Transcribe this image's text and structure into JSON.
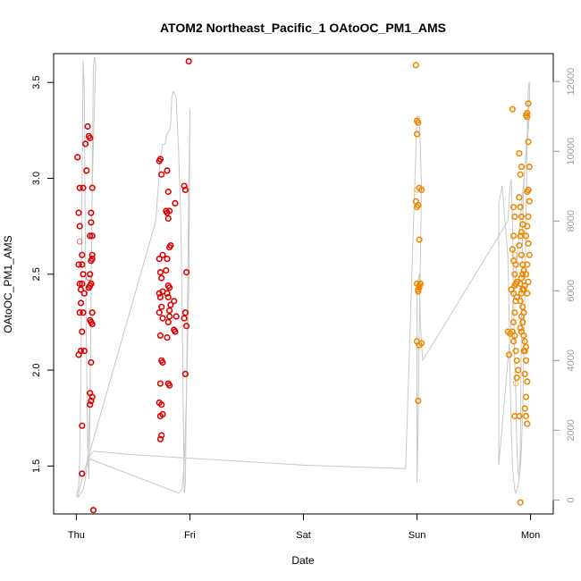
{
  "chart_data": {
    "type": "scatter",
    "title": "ATOM2 Northeast_Pacific_1 OAtoOC_PM1_AMS",
    "xlabel": "Date",
    "ylabel": "OAtoOC_PM1_AMS",
    "x_ticks": [
      "Thu",
      "Fri",
      "Sat",
      "Sun",
      "Mon"
    ],
    "x_range_days": [
      -0.2,
      4.2
    ],
    "y_left": {
      "range": [
        1.25,
        3.65
      ],
      "ticks": [
        "1.5",
        "2.0",
        "2.5",
        "3.0",
        "3.5"
      ]
    },
    "y_right": {
      "range": [
        -400,
        12800
      ],
      "ticks": [
        "0",
        "2000",
        "4000",
        "6000",
        "8000",
        "10000",
        "12000"
      ],
      "color": "#9a9a9a"
    },
    "grid": false,
    "legend": "none",
    "series": [
      {
        "color": "#dd0000",
        "x": [
          0.01,
          0.02,
          0.03,
          0.02,
          0.04,
          0.03,
          0.05,
          0.06,
          0.05,
          0.07,
          0.03,
          0.04,
          0.06,
          0.05,
          0.04,
          0.03,
          0.02,
          0.05,
          0.07,
          0.06,
          0.04,
          0.03,
          0.05,
          0.08,
          0.1,
          0.12,
          0.11,
          0.13,
          0.12,
          0.13,
          0.14,
          0.12,
          0.11,
          0.13,
          0.14,
          0.13,
          0.12,
          0.14,
          0.13,
          0.12,
          0.11,
          0.14,
          0.13,
          0.12,
          0.14,
          0.13,
          0.12,
          0.11,
          0.13,
          0.14,
          0.15,
          0.14,
          0.05,
          0.09,
          0.14,
          0.74,
          0.75,
          0.73,
          0.76,
          0.74,
          0.75,
          0.76,
          0.73,
          0.74,
          0.75,
          0.76,
          0.73,
          0.74,
          0.75,
          0.76,
          0.74,
          0.73,
          0.75,
          0.74,
          0.76,
          0.75,
          0.74,
          0.73,
          0.8,
          0.81,
          0.79,
          0.82,
          0.8,
          0.81,
          0.83,
          0.82,
          0.8,
          0.79,
          0.81,
          0.82,
          0.8,
          0.81,
          0.83,
          0.82,
          0.81,
          0.8,
          0.82,
          0.81,
          0.82,
          0.86,
          0.87,
          0.88,
          0.86,
          0.87,
          0.95,
          0.96,
          0.97,
          0.96,
          0.95,
          0.96,
          0.97,
          0.99
        ],
        "y": [
          3.11,
          2.08,
          2.75,
          2.55,
          2.1,
          2.95,
          2.45,
          2.5,
          2.6,
          2.4,
          2.3,
          2.35,
          2.3,
          2.2,
          2.42,
          2.67,
          2.82,
          1.71,
          2.1,
          2.95,
          2.42,
          2.45,
          2.55,
          3.18,
          3.27,
          3.21,
          3.22,
          2.82,
          2.7,
          2.77,
          2.58,
          2.5,
          2.48,
          2.45,
          2.6,
          2.45,
          2.44,
          2.3,
          2.25,
          2.26,
          2.43,
          2.24,
          2.04,
          1.88,
          1.86,
          1.84,
          1.82,
          2.43,
          2.57,
          2.58,
          1.27,
          2.7,
          1.46,
          3.04,
          2.95,
          3.1,
          3.02,
          2.58,
          2.6,
          2.51,
          2.48,
          2.41,
          2.4,
          2.38,
          2.33,
          2.27,
          2.3,
          2.18,
          2.05,
          2.04,
          1.93,
          1.83,
          1.82,
          1.76,
          1.77,
          1.66,
          1.64,
          3.09,
          3.04,
          2.93,
          2.83,
          2.83,
          2.82,
          2.79,
          2.65,
          2.64,
          2.58,
          2.52,
          2.44,
          2.43,
          2.4,
          2.38,
          2.34,
          2.31,
          2.25,
          2.17,
          2.28,
          1.93,
          1.92,
          2.36,
          2.87,
          2.28,
          2.21,
          2.2,
          2.96,
          2.94,
          2.51,
          2.3,
          2.27,
          1.98,
          2.23,
          3.61
        ],
        "hollow_light": [
          15,
          20,
          30,
          32
        ]
      },
      {
        "color": "#ee8800",
        "x": [
          2.99,
          3.0,
          3.01,
          3.0,
          3.02,
          3.0,
          2.99,
          3.01,
          3.0,
          3.02,
          3.04,
          3.03,
          3.02,
          3.01,
          3.0,
          3.02,
          3.01,
          3.0,
          3.04,
          3.02,
          3.01,
          3.03,
          3.8,
          3.82,
          3.81,
          3.83,
          3.84,
          3.85,
          3.86,
          3.85,
          3.84,
          3.86,
          3.85,
          3.87,
          3.86,
          3.88,
          3.87,
          3.86,
          3.85,
          3.88,
          3.87,
          3.86,
          3.85,
          3.84,
          3.86,
          3.85,
          3.87,
          3.88,
          3.89,
          3.88,
          3.87,
          3.86,
          3.9,
          3.91,
          3.9,
          3.92,
          3.91,
          3.9,
          3.91,
          3.92,
          3.93,
          3.92,
          3.91,
          3.9,
          3.92,
          3.93,
          3.94,
          3.93,
          3.92,
          3.91,
          3.93,
          3.92,
          3.91,
          3.93,
          3.94,
          3.92,
          3.93,
          3.91,
          3.92,
          3.94,
          3.95,
          3.96,
          3.95,
          3.94,
          3.96,
          3.95,
          3.97,
          3.96,
          3.95,
          3.96,
          3.97,
          3.98,
          3.97,
          3.96,
          3.97,
          3.98,
          3.99,
          3.98,
          3.97,
          3.99,
          3.98,
          3.97,
          3.96,
          3.98,
          3.99,
          3.97,
          3.96,
          3.98,
          3.95,
          3.94,
          3.97
        ],
        "y": [
          3.59,
          3.3,
          3.29,
          3.23,
          2.95,
          2.94,
          2.88,
          2.86,
          2.85,
          2.68,
          2.94,
          2.45,
          2.44,
          2.42,
          2.45,
          2.43,
          2.41,
          2.15,
          2.14,
          2.13,
          1.84,
          2.45,
          2.2,
          2.19,
          2.08,
          2.42,
          3.36,
          2.85,
          2.8,
          2.7,
          2.63,
          2.6,
          2.57,
          2.55,
          2.5,
          2.46,
          2.45,
          2.44,
          2.4,
          2.38,
          2.36,
          2.3,
          2.25,
          2.2,
          2.18,
          2.15,
          2.1,
          2.05,
          2.0,
          1.96,
          1.93,
          1.76,
          1.76,
          1.31,
          3.13,
          3.06,
          3.02,
          2.9,
          2.85,
          2.8,
          2.76,
          2.72,
          2.7,
          2.65,
          2.6,
          2.55,
          2.52,
          2.5,
          2.48,
          2.45,
          2.42,
          2.4,
          2.36,
          2.33,
          2.3,
          2.28,
          2.25,
          2.22,
          2.2,
          2.18,
          2.15,
          2.12,
          2.1,
          2.1,
          2.05,
          1.98,
          1.94,
          1.86,
          1.8,
          1.76,
          1.72,
          3.39,
          3.34,
          3.33,
          3.32,
          3.19,
          3.06,
          2.94,
          2.93,
          2.88,
          2.8,
          2.75,
          2.7,
          2.66,
          2.6,
          2.55,
          2.5,
          2.46,
          2.44,
          2.42,
          2.4
        ],
        "hollow_light": [
          5,
          31,
          50
        ]
      }
    ],
    "line_right_axis": {
      "color": "#c8c8c8",
      "x": [
        0.0,
        0.02,
        0.03,
        0.04,
        0.05,
        0.06,
        0.07,
        0.08,
        0.09,
        0.1,
        0.11,
        0.12,
        0.13,
        0.14,
        0.15,
        0.16,
        0.17,
        0.14,
        0.13,
        0.12,
        0.1,
        0.08,
        0.06,
        0.04,
        0.03,
        0.02,
        0.01,
        0.05,
        0.7,
        0.74,
        0.76,
        0.78,
        0.8,
        0.82,
        0.83,
        0.84,
        0.85,
        0.86,
        0.88,
        0.9,
        0.92,
        0.93,
        0.94,
        0.95,
        0.96,
        0.98,
        0.99,
        1.0,
        1.0,
        0.99,
        0.97,
        0.95,
        0.93,
        0.9,
        0.1,
        0.15,
        0.5,
        1.0,
        2.0,
        2.9,
        3.0,
        3.02,
        3.04,
        3.03,
        3.02,
        3.01,
        3.0,
        3.0,
        3.02,
        3.03,
        3.05,
        3.8,
        3.82,
        3.83,
        3.84,
        3.85,
        3.86,
        3.87,
        3.88,
        3.89,
        3.9,
        3.91,
        3.92,
        3.93,
        3.94,
        3.95,
        3.96,
        3.97,
        3.98,
        3.99,
        3.99,
        3.98,
        3.97,
        3.96,
        3.95,
        3.94,
        3.93,
        3.92,
        3.91,
        3.9,
        3.89,
        3.88,
        3.87,
        3.86,
        3.85,
        3.84,
        3.83,
        3.82,
        3.81,
        3.8,
        3.75,
        3.72,
        3.72,
        3.72,
        3.99,
        3.99
      ],
      "y": [
        100,
        400,
        1200,
        3500,
        9000,
        12600,
        11800,
        7000,
        4000,
        1500,
        600,
        2500,
        6000,
        9500,
        12400,
        12700,
        12500,
        9000,
        6000,
        3000,
        1200,
        600,
        300,
        200,
        150,
        100,
        80,
        600,
        8000,
        9800,
        10200,
        10200,
        10500,
        10600,
        10800,
        11500,
        11700,
        11700,
        11500,
        10000,
        8000,
        6000,
        3000,
        200,
        500,
        6000,
        9000,
        11000,
        11200,
        6000,
        3000,
        1000,
        300,
        200,
        1200,
        1400,
        1300,
        1200,
        1000,
        900,
        11000,
        11000,
        9000,
        7000,
        5000,
        2000,
        500,
        6000,
        6500,
        5000,
        4000,
        8000,
        9000,
        9200,
        8000,
        6000,
        4000,
        3000,
        1500,
        800,
        600,
        1500,
        5000,
        8000,
        9000,
        9500,
        10000,
        10500,
        11000,
        11500,
        12000,
        11800,
        10500,
        8000,
        6000,
        4000,
        2500,
        1500,
        1000,
        600,
        400,
        300,
        200,
        300,
        600,
        1000,
        2000,
        3500,
        5500,
        7000,
        9000,
        8500,
        1000,
        1000,
        11000,
        11000
      ]
    }
  }
}
